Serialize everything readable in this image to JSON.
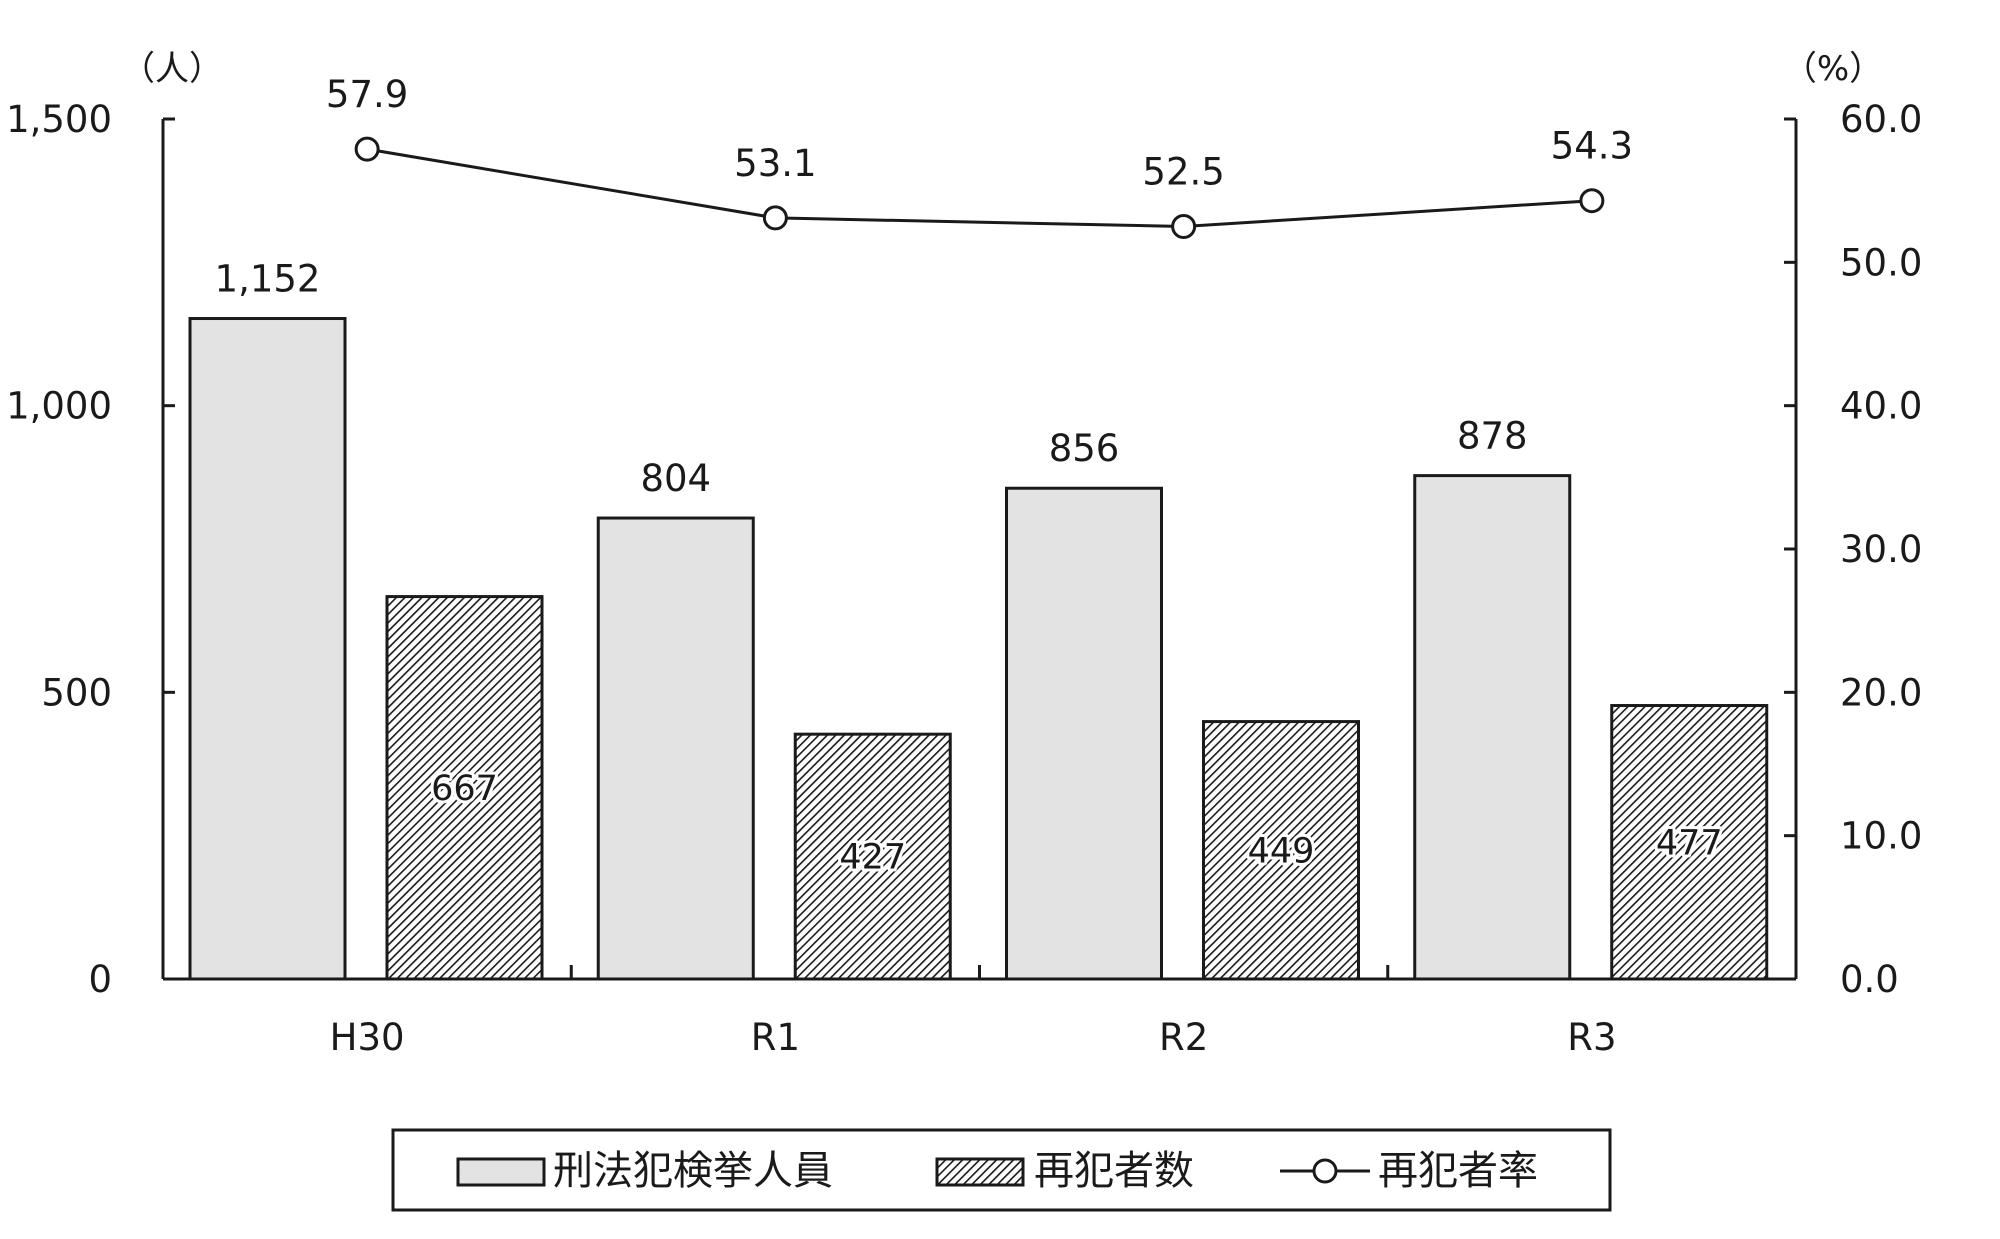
{
  "colors": {
    "bar_light": "#e3e3e3",
    "hatch_line": "#1a1a1a",
    "axis": "#1a1a1a",
    "line": "#1a1a1a",
    "marker_fill": "#ffffff"
  },
  "chart_data": {
    "type": "bar",
    "categories": [
      "H30",
      "R1",
      "R2",
      "R3"
    ],
    "series": [
      {
        "name": "刑法犯検挙人員",
        "type": "bar",
        "style": "light-gray",
        "axis": "left",
        "values": [
          1152,
          804,
          856,
          878
        ],
        "labels": [
          "1,152",
          "804",
          "856",
          "878"
        ],
        "label_position": "above"
      },
      {
        "name": "再犯者数",
        "type": "bar",
        "style": "hatched",
        "axis": "left",
        "values": [
          667,
          427,
          449,
          477
        ],
        "labels": [
          "667",
          "427",
          "449",
          "477"
        ],
        "label_position": "inside"
      },
      {
        "name": "再犯者率",
        "type": "line",
        "marker": "open-circle",
        "axis": "right",
        "values": [
          57.9,
          53.1,
          52.5,
          54.3
        ],
        "labels": [
          "57.9",
          "53.1",
          "52.5",
          "54.3"
        ],
        "label_position": "above"
      }
    ],
    "y_left": {
      "unit": "（人）",
      "ylim": [
        0,
        1500
      ],
      "ticks": [
        0,
        500,
        1000,
        1500
      ],
      "tick_labels": [
        "0",
        "500",
        "1,000",
        "1,500"
      ]
    },
    "y_right": {
      "unit": "（%）",
      "ylim": [
        0,
        60
      ],
      "ticks": [
        0,
        10,
        20,
        30,
        40,
        50,
        60
      ],
      "tick_labels": [
        "0.0",
        "10.0",
        "20.0",
        "30.0",
        "40.0",
        "50.0",
        "60.0"
      ]
    },
    "grid": false,
    "legend": "bottom-center"
  }
}
